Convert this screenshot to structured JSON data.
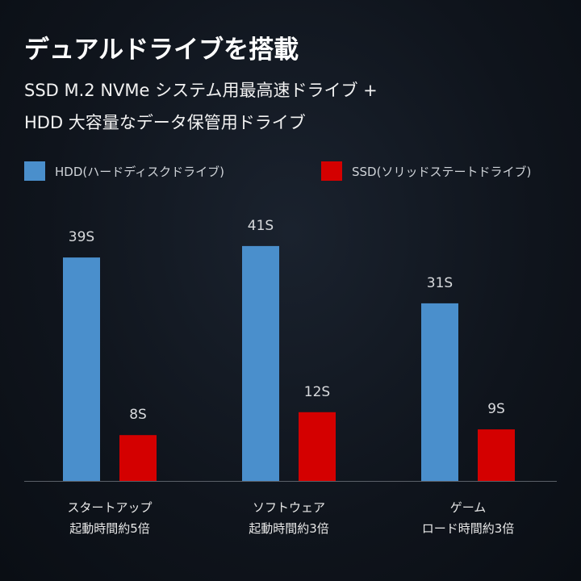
{
  "title": "デュアルドライブを搭載",
  "subtitle_lines": [
    "SSD M.2 NVMe システム用最高速ドライブ +",
    "HDD 大容量なデータ保管用ドライブ"
  ],
  "colors": {
    "hdd": "#4a8fcc",
    "ssd": "#d40000",
    "axis": "#5a6068",
    "value_label": "#d8dadd"
  },
  "chart_data": {
    "type": "bar",
    "categories": [
      "スタートアップ",
      "ソフトウェア",
      "ゲーム"
    ],
    "category_sublabels": [
      "起動時間約5倍",
      "起動時間約3倍",
      "ロード時間約3倍"
    ],
    "series": [
      {
        "name": "HDD(ハードディスクドライブ)",
        "values": [
          39,
          41,
          31
        ],
        "labels": [
          "39S",
          "41S",
          "31S"
        ]
      },
      {
        "name": "SSD(ソリッドステートドライブ)",
        "values": [
          8,
          12,
          9
        ],
        "labels": [
          "8S",
          "12S",
          "9S"
        ]
      }
    ],
    "ylim": [
      0,
      50
    ],
    "grid": false,
    "legend_position": "top"
  }
}
